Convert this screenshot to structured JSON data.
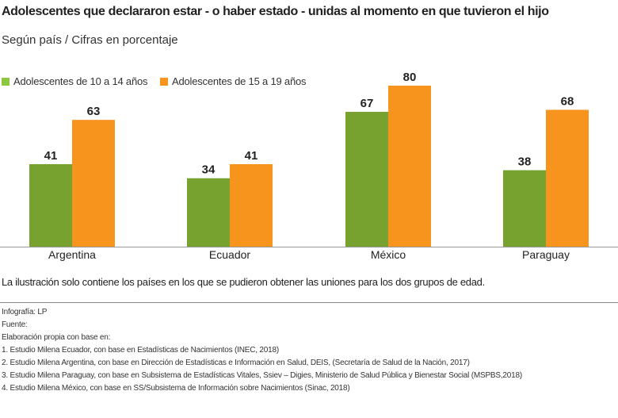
{
  "title": "Adolescentes que declararon estar - o haber estado - unidas al momento en que tuvieron el hijo",
  "subtitle": "Según país / Cifras en porcentaje",
  "chart_data": {
    "type": "bar",
    "categories": [
      "Argentina",
      "Ecuador",
      "México",
      "Paraguay"
    ],
    "series": [
      {
        "name": "Adolescentes de 10 a 14 años",
        "values": [
          41,
          34,
          67,
          38
        ],
        "color": "#78a22f"
      },
      {
        "name": "Adolescentes de 15 a 19 años",
        "values": [
          63,
          41,
          80,
          68
        ],
        "color": "#f7941d"
      }
    ],
    "ylim": [
      0,
      80
    ],
    "grid": false,
    "legend": "top-left",
    "data_labels": true
  },
  "legend_swatch_colors": [
    "#8dc63f",
    "#f7941d"
  ],
  "note": "La ilustración solo contiene los países en los que se pudieron obtener las uniones para los dos grupos de edad.",
  "footer": [
    "Infografía: LP",
    "Fuente:",
    "Elaboración propia con base en:",
    "1.  Estudio Milena Ecuador, con base en Estadísticas de Nacimientos (INEC, 2018)",
    "2.  Estudio Milena Argentina, con base en Dirección de Estadísticas e Información en Salud, DEIS, (Secretaría de Salud de la Nación, 2017)",
    "3.  Estudio Milena Paraguay, con base en Subsistema de Estadísticas Vitales, Ssiev – Digies, Ministerio de Salud Pública y Bienestar Social (MSPBS,2018)",
    "4.  Estudio Milena México, con base en SS/Subsistema de Información sobre Nacimientos (Sinac, 2018)"
  ]
}
